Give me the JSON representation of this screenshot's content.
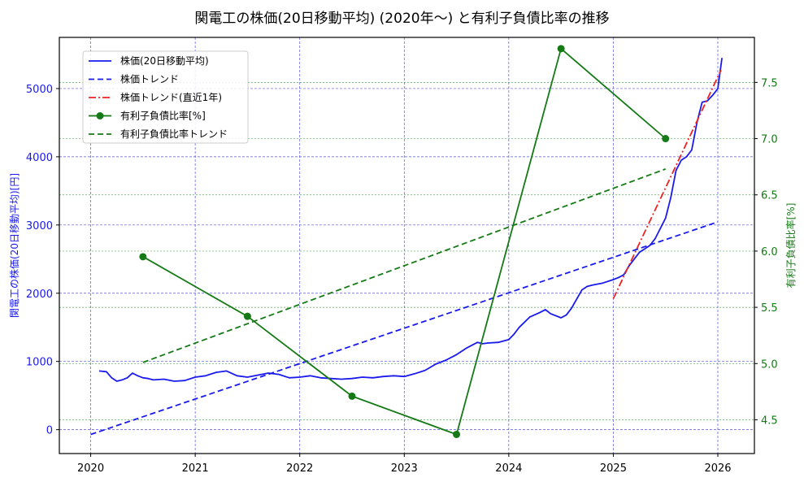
{
  "title": "関電工の株価(20日移動平均) (2020年〜) と有利子負債比率の推移",
  "colors": {
    "stock": "#1a1aee",
    "stock_trend": "#1a1aee",
    "recent_trend": "#ee2222",
    "debt": "#157a15",
    "debt_trend": "#157a15",
    "grid_left": "#5555dd",
    "grid_right": "#55aa55"
  },
  "chart_data": {
    "type": "line",
    "title": "関電工の株価(20日移動平均) (2020年〜) と有利子負債比率の推移",
    "xlabel": "",
    "ylabel": "関電工の株価(20日移動平均)[円]",
    "ylabel_right": "有利子負債比率[%]",
    "xlim": [
      2019.7,
      2026.35
    ],
    "ylim": [
      -350,
      5750
    ],
    "ylim_right": [
      4.2,
      7.9
    ],
    "x_ticks": [
      "2020",
      "2021",
      "2022",
      "2023",
      "2024",
      "2025",
      "2026"
    ],
    "y_ticks": [
      "0",
      "1000",
      "2000",
      "3000",
      "4000",
      "5000"
    ],
    "y_ticks_right": [
      "4.5",
      "5.0",
      "5.5",
      "6.0",
      "6.5",
      "7.0",
      "7.5"
    ],
    "grid": true,
    "legend_position": "upper left",
    "legend": [
      "株価(20日移動平均)",
      "株価トレンド",
      "株価トレンド(直近1年)",
      "有利子負債比率[%]",
      "有利子負債比率トレンド"
    ],
    "series": [
      {
        "name": "株価(20日移動平均)",
        "axis": "left",
        "style": "solid",
        "x": [
          2020.08,
          2020.15,
          2020.2,
          2020.25,
          2020.3,
          2020.35,
          2020.4,
          2020.45,
          2020.5,
          2020.55,
          2020.6,
          2020.7,
          2020.8,
          2020.9,
          2021.0,
          2021.1,
          2021.2,
          2021.3,
          2021.4,
          2021.5,
          2021.6,
          2021.7,
          2021.8,
          2021.9,
          2022.0,
          2022.1,
          2022.2,
          2022.3,
          2022.4,
          2022.5,
          2022.6,
          2022.7,
          2022.8,
          2022.9,
          2023.0,
          2023.1,
          2023.2,
          2023.3,
          2023.4,
          2023.5,
          2023.6,
          2023.7,
          2023.75,
          2023.8,
          2023.9,
          2024.0,
          2024.05,
          2024.1,
          2024.2,
          2024.3,
          2024.35,
          2024.4,
          2024.5,
          2024.55,
          2024.6,
          2024.7,
          2024.75,
          2024.8,
          2024.9,
          2025.0,
          2025.05,
          2025.1,
          2025.15,
          2025.2,
          2025.25,
          2025.3,
          2025.35,
          2025.4,
          2025.45,
          2025.5,
          2025.55,
          2025.6,
          2025.65,
          2025.7,
          2025.75,
          2025.8,
          2025.85,
          2025.9,
          2025.95,
          2026.0,
          2026.04
        ],
        "values": [
          860,
          850,
          760,
          710,
          730,
          760,
          830,
          790,
          760,
          750,
          730,
          740,
          710,
          720,
          770,
          790,
          840,
          860,
          790,
          770,
          800,
          830,
          810,
          760,
          770,
          790,
          760,
          750,
          740,
          750,
          770,
          760,
          780,
          790,
          780,
          820,
          870,
          960,
          1020,
          1100,
          1200,
          1280,
          1260,
          1270,
          1280,
          1320,
          1400,
          1500,
          1650,
          1720,
          1760,
          1700,
          1640,
          1680,
          1780,
          2050,
          2100,
          2120,
          2150,
          2200,
          2230,
          2270,
          2400,
          2500,
          2600,
          2650,
          2700,
          2800,
          2950,
          3100,
          3400,
          3800,
          3950,
          4000,
          4100,
          4500,
          4800,
          4820,
          4900,
          5000,
          5450
        ]
      },
      {
        "name": "株価トレンド",
        "axis": "left",
        "style": "dashed",
        "x": [
          2020.0,
          2026.0
        ],
        "values": [
          -70,
          3045
        ]
      },
      {
        "name": "株価トレンド(直近1年)",
        "axis": "left",
        "style": "dashdot",
        "x": [
          2025.0,
          2026.03
        ],
        "values": [
          1920,
          5270
        ]
      },
      {
        "name": "有利子負債比率[%]",
        "axis": "right",
        "style": "solid-marker",
        "x": [
          2020.5,
          2021.5,
          2022.5,
          2023.5,
          2024.5,
          2025.5
        ],
        "values": [
          5.95,
          5.42,
          4.71,
          4.37,
          7.8,
          7.0
        ]
      },
      {
        "name": "有利子負債比率トレンド",
        "axis": "right",
        "style": "dashed",
        "x": [
          2020.5,
          2025.5
        ],
        "values": [
          5.01,
          6.73
        ]
      }
    ]
  }
}
